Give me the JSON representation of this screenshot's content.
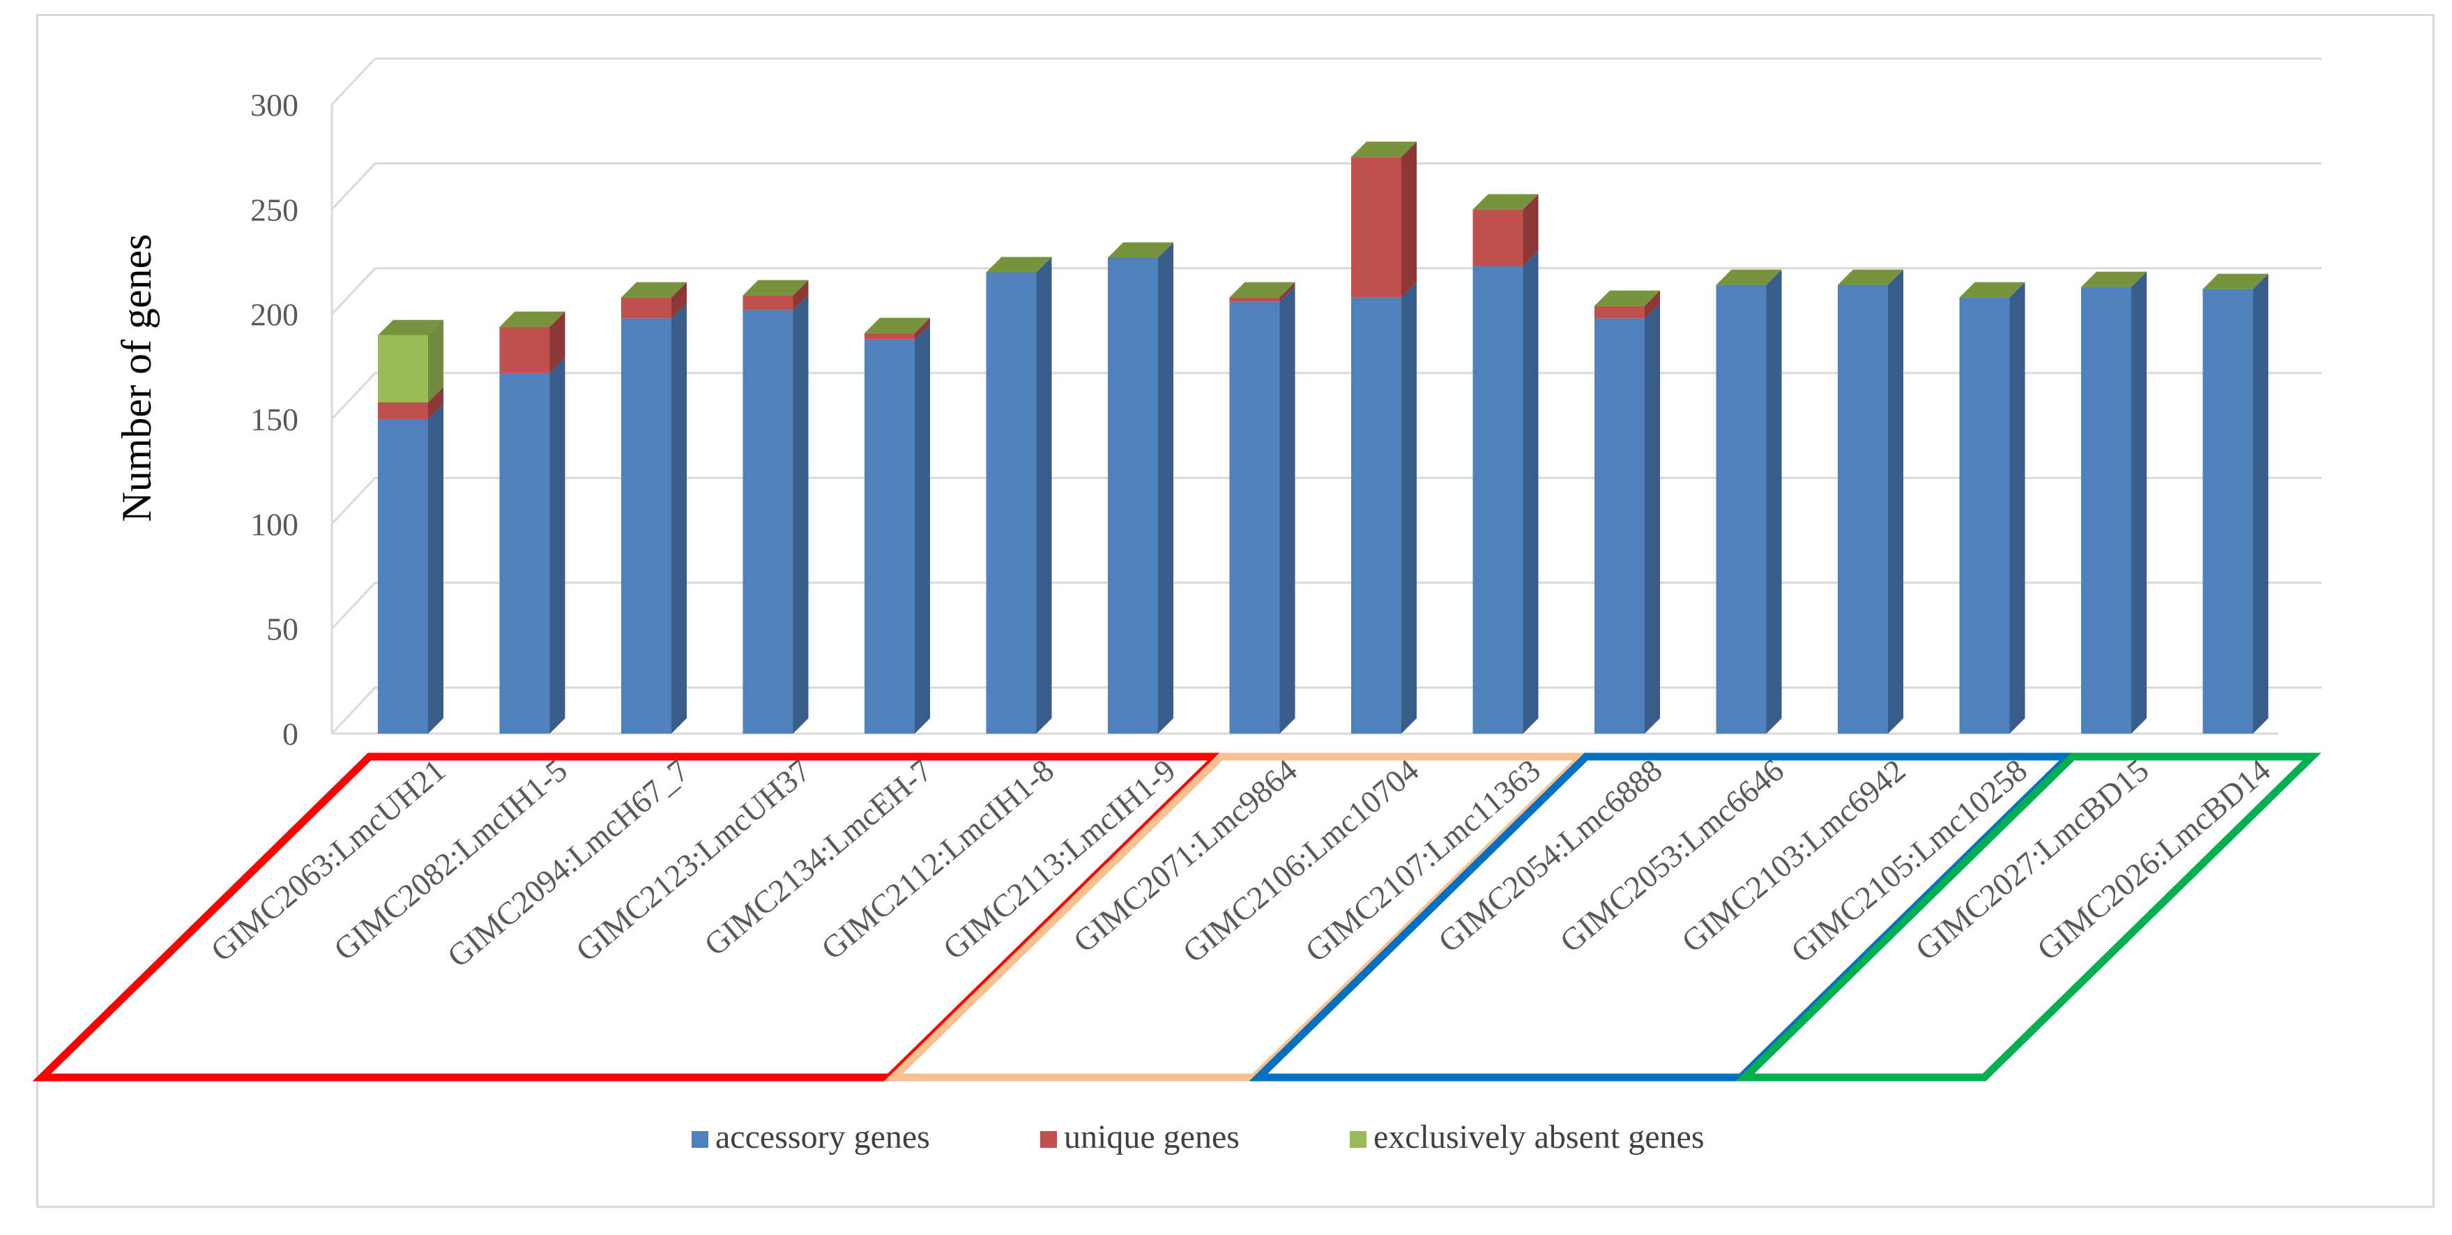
{
  "chart_data": {
    "type": "bar",
    "stacked": true,
    "three_d": true,
    "title": "",
    "xlabel": "",
    "ylabel": "Number of genes",
    "ylim": [
      0,
      300
    ],
    "yticks": [
      0,
      50,
      100,
      150,
      200,
      250,
      300
    ],
    "grid": true,
    "legend_position": "bottom",
    "categories": [
      "GIMC2063:LmcUH21",
      "GIMC2082:LmcIH1-5",
      "GIMC2094:LmcH67_7",
      "GIMC2123:LmcUH37",
      "GIMC2134:LmcEH-7",
      "GIMC2112:LmcIH1-8",
      "GIMC2113:LmcIH1-9",
      "GIMC2071:Lmc9864",
      "GIMC2106:Lmc10704",
      "GIMC2107:Lmc11363",
      "GIMC2054:Lmc6888",
      "GIMC2053:Lmc6646",
      "GIMC2103:Lmc6942",
      "GIMC2105:Lmc10258",
      "GIMC2027:LmcBD15",
      "GIMC2026:LmcBD14"
    ],
    "series": [
      {
        "name": "accessory genes",
        "color": "#4f81bd",
        "side_color": "#385d8a",
        "top_color": "#6f97c9",
        "values": [
          150,
          172,
          198,
          202,
          188,
          220,
          227,
          206,
          208,
          223,
          198,
          214,
          214,
          208,
          213,
          212
        ]
      },
      {
        "name": "unique genes",
        "color": "#c0504d",
        "side_color": "#8c3836",
        "top_color": "#cd6e6b",
        "values": [
          8,
          22,
          10,
          7,
          3,
          0,
          0,
          2,
          67,
          27,
          6,
          0,
          0,
          0,
          0,
          0
        ]
      },
      {
        "name": "exclusively absent genes",
        "color": "#9bbb59",
        "side_color": "#71893f",
        "top_color": "#77933c",
        "values": [
          32,
          0,
          0,
          0,
          0,
          0,
          0,
          0,
          0,
          0,
          0,
          0,
          0,
          0,
          0,
          0
        ]
      }
    ],
    "groups": [
      {
        "color": "#ff0000",
        "from": 0,
        "to": 6
      },
      {
        "color": "#fac090",
        "from": 7,
        "to": 9
      },
      {
        "color": "#0070c0",
        "from": 10,
        "to": 13
      },
      {
        "color": "#00b050",
        "from": 14,
        "to": 15
      }
    ]
  }
}
